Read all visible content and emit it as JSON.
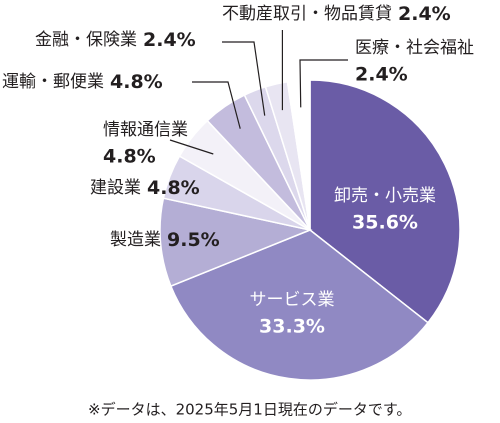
{
  "chart_data": {
    "type": "pie",
    "categories": [
      "卸売・小売業",
      "サービス業",
      "製造業",
      "建設業",
      "情報通信業",
      "運輸・郵便業",
      "金融・保険業",
      "不動産取引・物品賃貸",
      "医療・社会福祉"
    ],
    "values": [
      35.6,
      33.3,
      9.5,
      4.8,
      4.8,
      4.8,
      2.4,
      2.4,
      2.4
    ],
    "value_labels": [
      "35.6%",
      "33.3%",
      "9.5%",
      "4.8%",
      "4.8%",
      "4.8%",
      "2.4%",
      "2.4%",
      "2.4%"
    ],
    "colors": [
      "#6a5ca6",
      "#9089c3",
      "#b4aed5",
      "#d9d5eb",
      "#f3f1f8",
      "#c3bcdd",
      "#dcd8ec",
      "#e8e5f2",
      "#ffffff"
    ],
    "footnote": "※データは、2025年5月1日現在のデータです。"
  }
}
